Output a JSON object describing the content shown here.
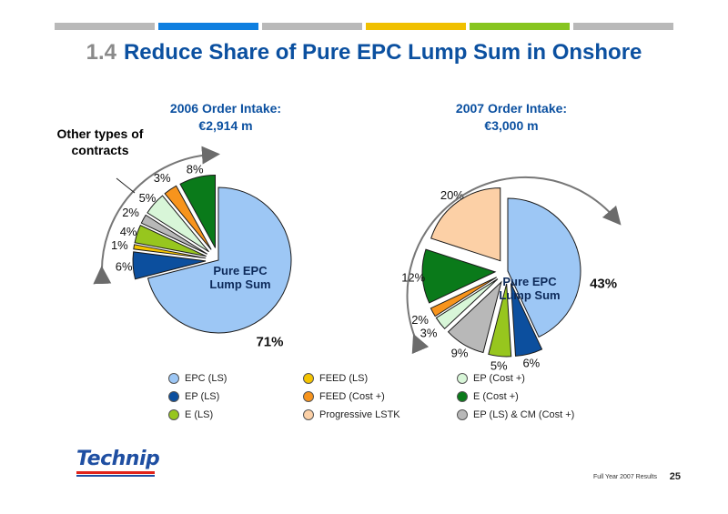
{
  "header": {
    "number": "1.4",
    "title": "Reduce Share of Pure EPC Lump Sum in Onshore",
    "bar_colors": [
      "#b9b9b9",
      "#0f7fe0",
      "#b9b9b9",
      "#f0c000",
      "#87c520",
      "#b9b9b9"
    ]
  },
  "annotation": {
    "other_types": "Other types of contracts"
  },
  "chart_data": [
    {
      "type": "pie",
      "title": "2006 Order Intake:",
      "subtitle": "€2,914 m",
      "center_label": "Pure EPC Lump Sum",
      "slices": [
        {
          "category": "EPC (LS)",
          "value": 71,
          "label": "71%",
          "color": "#9dc7f5",
          "exploded": false
        },
        {
          "category": "EP (LS)",
          "value": 6,
          "label": "6%",
          "color": "#0c4f9e",
          "exploded": true
        },
        {
          "category": "E (LS)",
          "value": 1,
          "label": "1%",
          "color": "#f5c400",
          "exploded": true
        },
        {
          "category": "FEED (LS)",
          "value": 4,
          "label": "4%",
          "color": "#97c61e",
          "exploded": true
        },
        {
          "category": "EP (LS) & CM (Cost +)",
          "value": 2,
          "label": "2%",
          "color": "#b8b8b8",
          "exploded": true
        },
        {
          "category": "EP (Cost +)",
          "value": 5,
          "label": "5%",
          "color": "#d8f6d8",
          "exploded": true
        },
        {
          "category": "FEED (Cost +)",
          "value": 3,
          "label": "3%",
          "color": "#f7941d",
          "exploded": true
        },
        {
          "category": "E (Cost +)",
          "value": 8,
          "label": "8%",
          "color": "#0a7a1a",
          "exploded": true
        }
      ]
    },
    {
      "type": "pie",
      "title": "2007 Order Intake:",
      "subtitle": "€3,000 m",
      "center_label": "Pure EPC Lump Sum",
      "slices": [
        {
          "category": "EPC (LS)",
          "value": 43,
          "label": "43%",
          "color": "#9dc7f5",
          "exploded": false
        },
        {
          "category": "EP (LS)",
          "value": 6,
          "label": "6%",
          "color": "#0c4f9e",
          "exploded": true
        },
        {
          "category": "E (LS)",
          "value": 5,
          "label": "5%",
          "color": "#97c61e",
          "exploded": true
        },
        {
          "category": "EP (LS) & CM (Cost +)",
          "value": 9,
          "label": "9%",
          "color": "#b8b8b8",
          "exploded": true
        },
        {
          "category": "EP (Cost +)",
          "value": 3,
          "label": "3%",
          "color": "#d8f6d8",
          "exploded": true
        },
        {
          "category": "FEED (Cost +)",
          "value": 2,
          "label": "2%",
          "color": "#f7941d",
          "exploded": true
        },
        {
          "category": "E (Cost +)",
          "value": 12,
          "label": "12%",
          "color": "#0a7a1a",
          "exploded": true
        },
        {
          "category": "Progressive LSTK",
          "value": 20,
          "label": "20%",
          "color": "#fcd0a6",
          "exploded": true
        }
      ]
    }
  ],
  "legend": [
    {
      "label": "EPC   (LS)",
      "color": "#9dc7f5"
    },
    {
      "label": "EP      (LS)",
      "color": "#0c4f9e"
    },
    {
      "label": "E        (LS)",
      "color": "#97c61e"
    },
    {
      "label": "FEED  (LS)",
      "color": "#f5c400"
    },
    {
      "label": "FEED  (Cost +)",
      "color": "#f7941d"
    },
    {
      "label": "Progressive LSTK",
      "color": "#fcd0a6"
    },
    {
      "label": "EP  (Cost +)",
      "color": "#d8f6d8"
    },
    {
      "label": "E    (Cost +)",
      "color": "#0a7a1a"
    },
    {
      "label": "EP (LS) & CM (Cost +)",
      "color": "#b8b8b8"
    }
  ],
  "footer": {
    "logo": "Technip",
    "caption": "Full Year 2007 Results",
    "page": "25"
  }
}
